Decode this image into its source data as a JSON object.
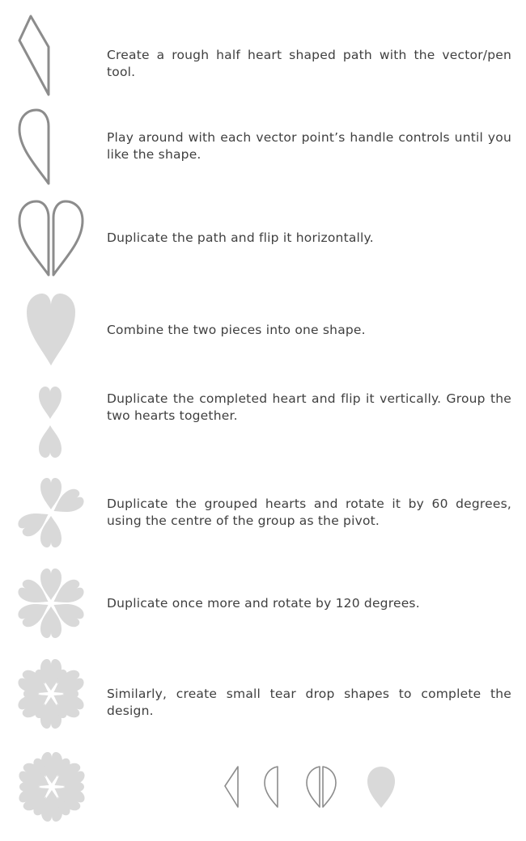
{
  "steps": [
    {
      "text": "Create a rough half heart shaped path with the vector/pen tool."
    },
    {
      "text": "Play around with each vector point’s handle controls until you like the shape."
    },
    {
      "text": "Duplicate the path and flip it horizontally."
    },
    {
      "text": "Combine the two pieces into one shape."
    },
    {
      "text": "Duplicate the completed heart and flip it vertically. Group the two hearts together."
    },
    {
      "text": "Duplicate the grouped hearts and rotate it by 60 degrees, using the centre of the group as the pivot."
    },
    {
      "text": "Duplicate once more and rotate by 120 degrees."
    },
    {
      "text": "Similarly, create small tear drop shapes to complete the design."
    }
  ],
  "colors": {
    "outline": "#8c8c8c",
    "fill": "#d9d9d9",
    "text": "#3f3f3f"
  }
}
